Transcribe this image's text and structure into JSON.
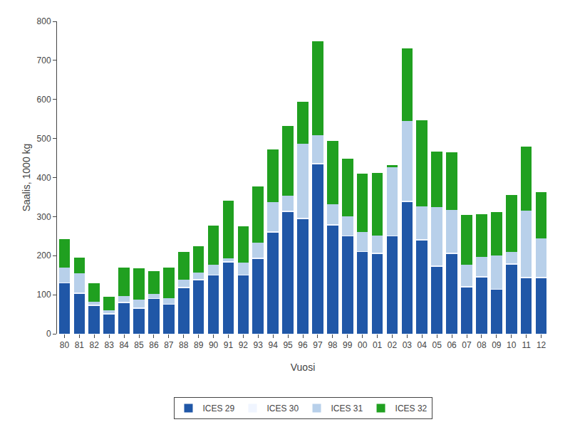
{
  "chart_data": {
    "type": "bar",
    "stacked": true,
    "categories": [
      "80",
      "81",
      "82",
      "83",
      "84",
      "85",
      "86",
      "87",
      "88",
      "89",
      "90",
      "91",
      "92",
      "93",
      "94",
      "95",
      "96",
      "97",
      "98",
      "99",
      "00",
      "01",
      "02",
      "03",
      "04",
      "05",
      "06",
      "07",
      "08",
      "09",
      "10",
      "11",
      "12"
    ],
    "series": [
      {
        "name": "ICES 29",
        "color": "#2057a7",
        "values": [
          130,
          103,
          72,
          50,
          80,
          65,
          90,
          75,
          118,
          138,
          150,
          183,
          150,
          193,
          260,
          313,
          295,
          435,
          278,
          250,
          210,
          205,
          250,
          338,
          240,
          173,
          205,
          120,
          145,
          113,
          178,
          143,
          143
        ]
      },
      {
        "name": "ICES 30",
        "color": "#f0f5ff",
        "values": [
          2,
          2,
          2,
          2,
          2,
          2,
          2,
          2,
          2,
          2,
          2,
          2,
          2,
          2,
          2,
          2,
          2,
          2,
          2,
          2,
          2,
          2,
          2,
          2,
          2,
          2,
          2,
          2,
          2,
          2,
          2,
          2,
          2
        ]
      },
      {
        "name": "ICES 31",
        "color": "#b8d0ea",
        "values": [
          38,
          50,
          8,
          8,
          15,
          20,
          10,
          15,
          18,
          17,
          25,
          8,
          30,
          38,
          75,
          38,
          190,
          72,
          52,
          48,
          48,
          45,
          175,
          205,
          85,
          150,
          110,
          55,
          50,
          85,
          30,
          170,
          100
        ]
      },
      {
        "name": "ICES 32",
        "color": "#20a020",
        "values": [
          72,
          40,
          48,
          35,
          72,
          80,
          58,
          78,
          72,
          68,
          100,
          148,
          93,
          145,
          135,
          180,
          107,
          240,
          162,
          148,
          150,
          160,
          5,
          185,
          220,
          142,
          148,
          128,
          110,
          112,
          145,
          165,
          118
        ]
      }
    ],
    "xlabel": "Vuosi",
    "ylabel": "Saalis, 1000 kg",
    "ylim": [
      0,
      800
    ],
    "yticks": [
      0,
      100,
      200,
      300,
      400,
      500,
      600,
      700,
      800
    ],
    "grid": false,
    "legend": "bottom"
  }
}
